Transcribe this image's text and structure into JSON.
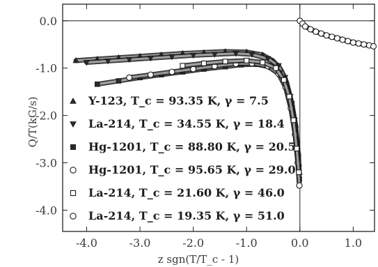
{
  "chart_data": {
    "type": "scatter",
    "title": "",
    "xlabel": "z sgn(T/T_c - 1)",
    "ylabel": "Q/T(kG/s)",
    "xlim": [
      -4.45,
      1.4
    ],
    "ylim": [
      -4.45,
      0.35
    ],
    "x_ticks": [
      "-4.0",
      "-3.0",
      "-2.0",
      "-1.0",
      "0.0",
      "1.0"
    ],
    "y_ticks": [
      "0.0",
      "-1.0",
      "-2.0",
      "-3.0",
      "-4.0"
    ],
    "grid": false,
    "reference_lines": [
      {
        "axis": "x",
        "value": 0
      },
      {
        "axis": "y",
        "value": 0
      }
    ],
    "legend_position": "bottom-left",
    "series": [
      {
        "name": "Y-123, T_c = 93.35 K, γ = 7.5",
        "marker": "triangle-up",
        "x": [
          -4.2,
          -3.8,
          -3.4,
          -3.0,
          -2.6,
          -2.2,
          -1.8,
          -1.4,
          -1.0,
          -0.7,
          -0.5,
          -0.35,
          -0.25,
          -0.15,
          -0.08,
          -0.03,
          -0.01
        ],
        "y": [
          -0.84,
          -0.81,
          -0.78,
          -0.75,
          -0.72,
          -0.69,
          -0.67,
          -0.65,
          -0.66,
          -0.72,
          -0.85,
          -1.05,
          -1.3,
          -1.75,
          -2.2,
          -2.8,
          -3.2
        ]
      },
      {
        "name": "La-214, T_c = 34.55 K, γ = 18.4",
        "marker": "triangle-down",
        "x": [
          -4.0,
          -3.6,
          -3.2,
          -2.8,
          -2.4,
          -2.0,
          -1.6,
          -1.2,
          -0.9,
          -0.6,
          -0.4,
          -0.28,
          -0.18,
          -0.1,
          -0.05,
          -0.02
        ],
        "y": [
          -0.88,
          -0.85,
          -0.82,
          -0.79,
          -0.76,
          -0.73,
          -0.71,
          -0.69,
          -0.71,
          -0.8,
          -0.95,
          -1.2,
          -1.6,
          -2.1,
          -2.6,
          -3.1
        ]
      },
      {
        "name": "Hg-1201, T_c = 88.80 K, γ = 20.5",
        "marker": "square-filled",
        "x": [
          -3.8,
          -3.4,
          -3.0,
          -2.6,
          -2.2,
          -1.8,
          -1.4,
          -1.1,
          -0.8,
          -0.55,
          -0.38,
          -0.25,
          -0.15,
          -0.08,
          -0.03,
          -0.01
        ],
        "y": [
          -1.34,
          -1.27,
          -1.2,
          -1.14,
          -1.08,
          -1.02,
          -0.97,
          -0.93,
          -0.92,
          -0.98,
          -1.1,
          -1.35,
          -1.75,
          -2.25,
          -2.85,
          -3.35
        ]
      },
      {
        "name": "Hg-1201, T_c = 95.65 K, γ = 29.0",
        "marker": "circle-open",
        "x": [
          -3.2,
          -2.8,
          -2.4,
          -2.0,
          -1.6,
          -1.2,
          -0.9,
          -0.6,
          -0.4,
          -0.27,
          -0.17,
          -0.09,
          -0.04,
          -0.01
        ],
        "y": [
          -1.2,
          -1.14,
          -1.08,
          -1.02,
          -0.96,
          -0.91,
          -0.9,
          -0.96,
          -1.12,
          -1.4,
          -1.85,
          -2.4,
          -3.0,
          -3.48
        ]
      },
      {
        "name": "La-214, T_c = 21.60 K, γ = 46.0",
        "marker": "square-open",
        "x": [
          -2.2,
          -1.8,
          -1.4,
          -1.0,
          -0.7,
          -0.45,
          -0.3,
          -0.2,
          -0.12,
          -0.06,
          -0.02
        ],
        "y": [
          -0.95,
          -0.9,
          -0.86,
          -0.84,
          -0.88,
          -1.0,
          -1.25,
          -1.6,
          -2.1,
          -2.7,
          -3.2
        ]
      },
      {
        "name": "La-214, T_c = 19.35 K, γ = 51.0",
        "marker": "circle-open",
        "x": [
          0.0,
          0.05,
          0.1,
          0.2,
          0.3,
          0.4,
          0.5,
          0.6,
          0.7,
          0.8,
          0.9,
          1.0,
          1.1,
          1.2,
          1.3,
          1.38
        ],
        "y": [
          0.0,
          -0.06,
          -0.12,
          -0.18,
          -0.23,
          -0.27,
          -0.31,
          -0.34,
          -0.37,
          -0.4,
          -0.43,
          -0.46,
          -0.48,
          -0.5,
          -0.52,
          -0.54
        ]
      }
    ]
  }
}
